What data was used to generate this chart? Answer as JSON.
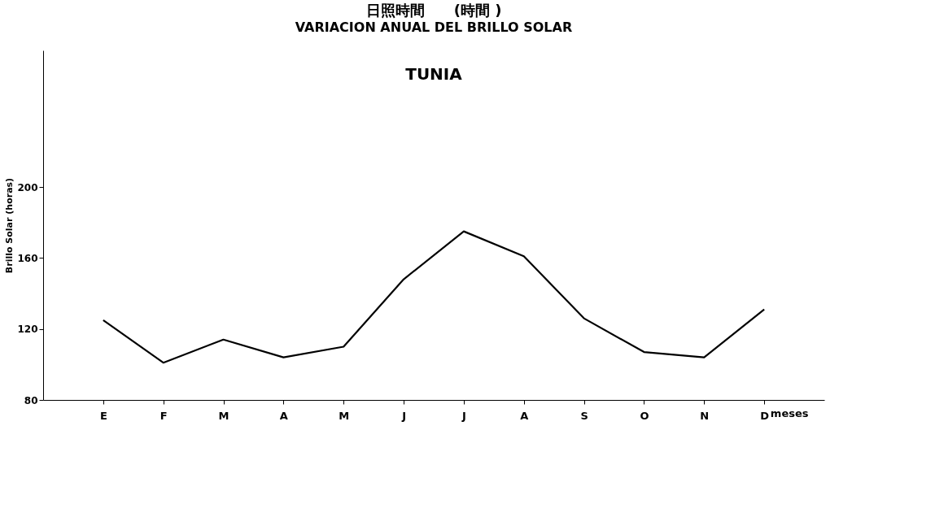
{
  "chart_data": {
    "type": "line",
    "title": "日照時間　　(時間 )",
    "subtitle": "VARIACION ANUAL DEL BRILLO SOLAR",
    "annotations": [
      "TUNIA"
    ],
    "xlabel": "meses",
    "ylabel": "Brillo Solar (horas)",
    "categories": [
      "E",
      "F",
      "M",
      "A",
      "M",
      "J",
      "J",
      "A",
      "S",
      "O",
      "N",
      "D"
    ],
    "series": [
      {
        "color": "#000000",
        "values": [
          125,
          101,
          114,
          104,
          110,
          148,
          175,
          161,
          126,
          107,
          104,
          131
        ]
      }
    ],
    "ylim": [
      80,
      277
    ],
    "yticks": [
      80,
      120,
      160,
      200
    ],
    "grid": false,
    "line_style": "solid"
  }
}
